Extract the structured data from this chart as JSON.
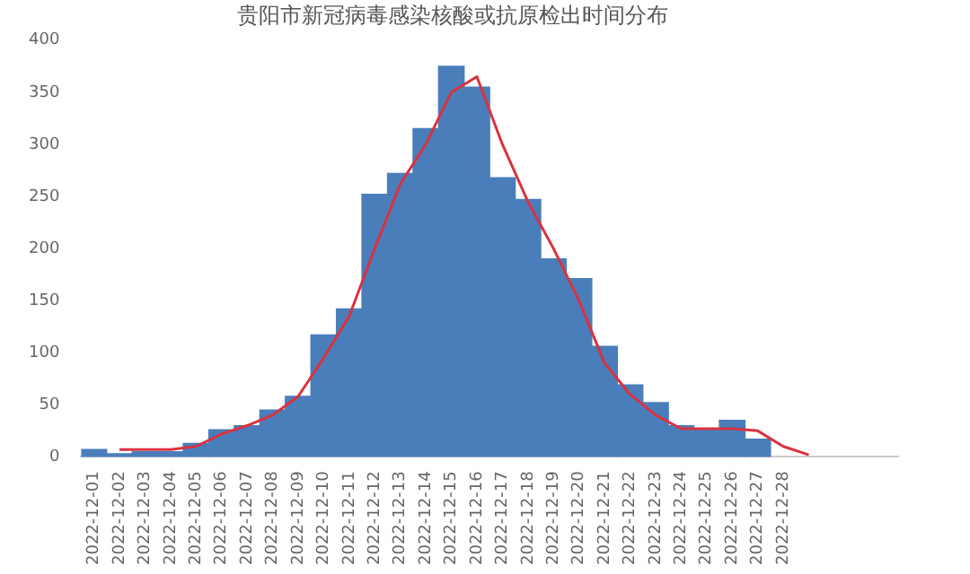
{
  "chart_data": {
    "type": "bar",
    "title": "贵阳市新冠病毒感染核酸或抗原检出时间分布",
    "categories": [
      "2022-12-01",
      "2022-12-02",
      "2022-12-03",
      "2022-12-04",
      "2022-12-05",
      "2022-12-06",
      "2022-12-07",
      "2022-12-08",
      "2022-12-09",
      "2022-12-10",
      "2022-12-11",
      "2022-12-12",
      "2022-12-13",
      "2022-12-14",
      "2022-12-15",
      "2022-12-16",
      "2022-12-17",
      "2022-12-18",
      "2022-12-19",
      "2022-12-20",
      "2022-12-21",
      "2022-12-22",
      "2022-12-23",
      "2022-12-24",
      "2022-12-25",
      "2022-12-26",
      "2022-12-27",
      "2022-12-28",
      null,
      null,
      null,
      null
    ],
    "series": [
      {
        "color": "#4a7ebb",
        "values": [
          7,
          3,
          5,
          5,
          13,
          26,
          30,
          45,
          58,
          117,
          142,
          252,
          272,
          315,
          375,
          355,
          268,
          247,
          190,
          171,
          106,
          69,
          52,
          30,
          27,
          35,
          17,
          null,
          null,
          null,
          null,
          null
        ]
      },
      {
        "type": "line",
        "color": "#d9323f",
        "values": [
          null,
          7,
          7,
          7,
          10,
          22,
          30,
          40,
          58,
          95,
          135,
          200,
          262,
          300,
          350,
          365,
          300,
          245,
          200,
          150,
          90,
          60,
          40,
          27,
          27,
          27,
          25,
          10,
          2,
          null,
          null,
          null
        ]
      }
    ],
    "ylim": [
      0,
      400
    ],
    "yticks": [
      0,
      50,
      100,
      150,
      200,
      250,
      300,
      350,
      400
    ],
    "grid": false,
    "legend": false,
    "marker": "none",
    "line_style": "solid"
  }
}
